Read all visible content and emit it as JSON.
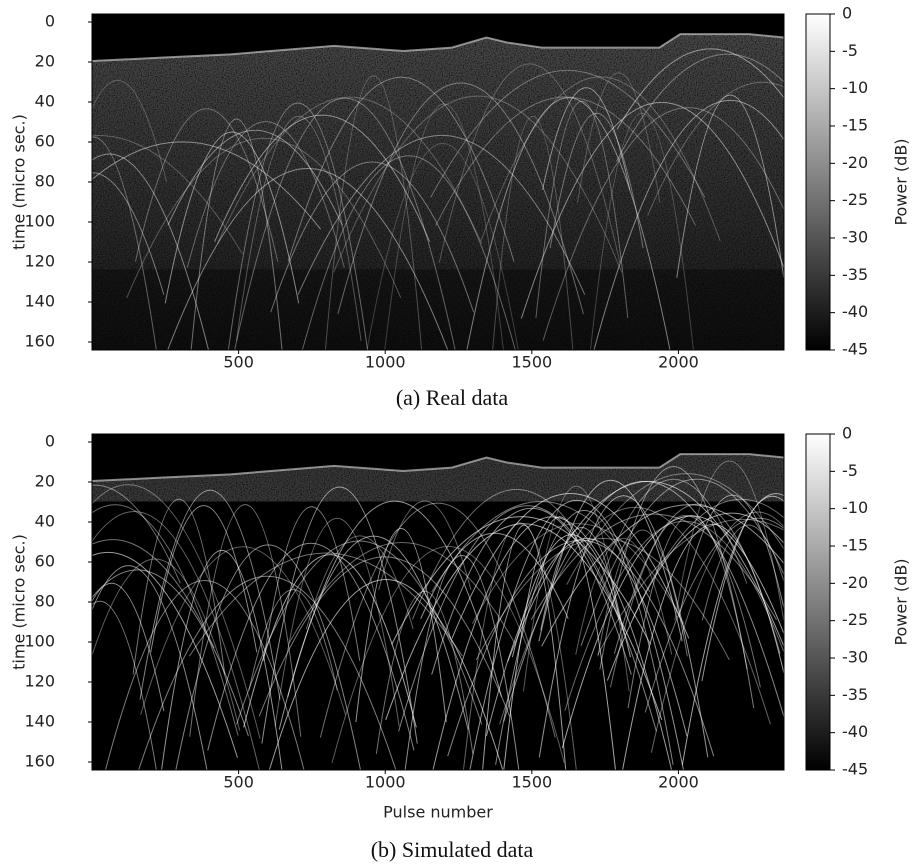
{
  "chart_data": [
    {
      "type": "heatmap",
      "caption": "(a) Real data",
      "ylabel": "time (micro sec.)",
      "xlim": [
        0,
        2360
      ],
      "xticks": [
        500,
        1000,
        1500,
        2000
      ],
      "ylim": [
        164,
        -4
      ],
      "yticks": [
        0,
        20,
        40,
        60,
        80,
        100,
        120,
        140,
        160
      ],
      "colorbar": {
        "label": "Power (dB)",
        "lim": [
          -45,
          0
        ],
        "ticks": [
          0,
          -5,
          -10,
          -15,
          -20,
          -25,
          -30,
          -35,
          -40,
          -45
        ],
        "colors": [
          "#000000",
          "#ffffff"
        ]
      }
    },
    {
      "type": "heatmap",
      "caption": "(b) Simulated data",
      "ylabel": "time (micro sec.)",
      "xlabel": "Pulse number",
      "xlim": [
        0,
        2360
      ],
      "xticks": [
        500,
        1000,
        1500,
        2000
      ],
      "ylim": [
        164,
        -4
      ],
      "yticks": [
        0,
        20,
        40,
        60,
        80,
        100,
        120,
        140,
        160
      ],
      "colorbar": {
        "label": "Power (dB)",
        "lim": [
          -45,
          0
        ],
        "ticks": [
          0,
          -5,
          -10,
          -15,
          -20,
          -25,
          -30,
          -35,
          -40,
          -45
        ],
        "colors": [
          "#000000",
          "#ffffff"
        ]
      }
    }
  ]
}
